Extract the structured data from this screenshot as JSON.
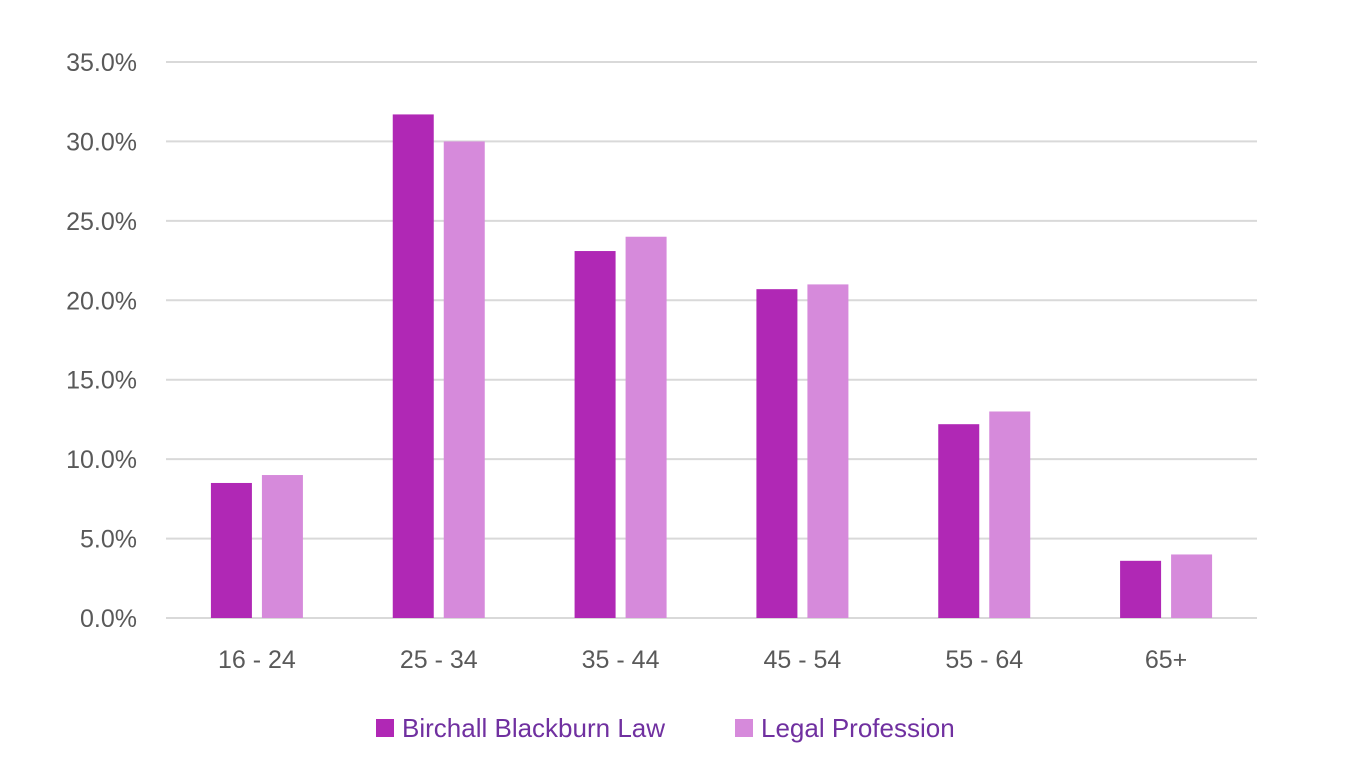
{
  "chart_data": {
    "type": "bar",
    "categories": [
      "16 - 24",
      "25 - 34",
      "35 - 44",
      "45 - 54",
      "55 - 64",
      "65+"
    ],
    "series": [
      {
        "name": "Birchall Blackburn Law",
        "color": "#b028b5",
        "values": [
          8.5,
          31.7,
          23.1,
          20.7,
          12.2,
          3.6
        ]
      },
      {
        "name": "Legal Profession",
        "color": "#d68adb",
        "values": [
          9.0,
          30.0,
          24.0,
          21.0,
          13.0,
          4.0
        ]
      }
    ],
    "y_ticks": [
      "0.0%",
      "5.0%",
      "10.0%",
      "15.0%",
      "20.0%",
      "25.0%",
      "30.0%",
      "35.0%"
    ],
    "ylim": [
      0,
      35
    ],
    "grid": true,
    "legend": "bottom-center",
    "title": "",
    "xlabel": "",
    "ylabel": ""
  }
}
